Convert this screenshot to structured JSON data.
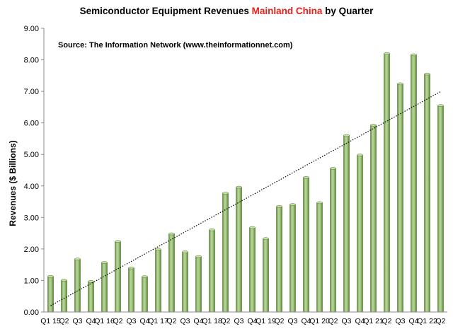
{
  "chart_data": {
    "type": "bar",
    "title_parts": [
      {
        "text": "Semiconductor Equipment Revenues ",
        "color": "#000000"
      },
      {
        "text": "Mainland China",
        "color": "#e8211c"
      },
      {
        "text": " by Quarter",
        "color": "#000000"
      }
    ],
    "source": "Source: The Information Network (www.theinformationnet.com)",
    "ylabel": "Revenues ($ Billions)",
    "xlabel": "",
    "ylim": [
      0,
      9
    ],
    "yticks": [
      "0.00",
      "1.00",
      "2.00",
      "3.00",
      "4.00",
      "5.00",
      "6.00",
      "7.00",
      "8.00",
      "9.00"
    ],
    "categories": [
      "Q1 15",
      "Q2",
      "Q3",
      "Q4",
      "Q1 16",
      "Q2",
      "Q3",
      "Q4",
      "Q1 17",
      "Q2",
      "Q3",
      "Q4",
      "Q1 18",
      "Q2",
      "Q3",
      "Q4",
      "Q1 19",
      "Q2",
      "Q3",
      "Q4",
      "Q1 20",
      "Q2",
      "Q3",
      "Q4",
      "Q1 21",
      "Q2",
      "Q3",
      "Q4",
      "Q1 22",
      "Q2"
    ],
    "values": [
      1.13,
      1.01,
      1.68,
      0.97,
      1.57,
      2.24,
      1.4,
      1.12,
      1.99,
      2.48,
      1.91,
      1.76,
      2.61,
      3.77,
      3.96,
      2.68,
      2.33,
      3.35,
      3.41,
      4.27,
      3.47,
      4.56,
      5.6,
      4.98,
      5.93,
      8.2,
      7.24,
      8.16,
      7.55,
      6.55
    ],
    "trendline": {
      "style": "dotted",
      "type": "linear",
      "color": "#000000"
    },
    "bar_color": "#8fb56a",
    "gridlines": false,
    "legend": "none"
  }
}
